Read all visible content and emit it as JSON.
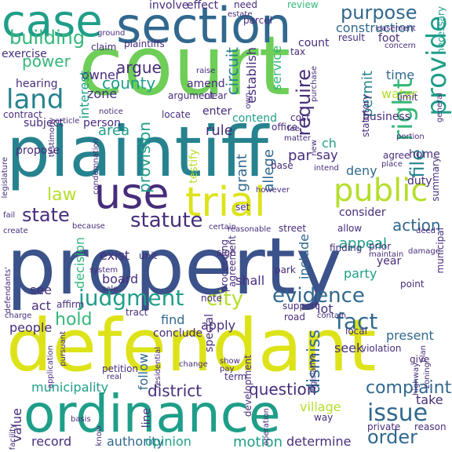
{
  "palette": {
    "dark-purple": "#472d7b",
    "indigo": "#3b528b",
    "slate-blue": "#31688e",
    "teal-blue": "#26828e",
    "teal": "#1f9e89",
    "green": "#35b779",
    "lime": "#6ece58",
    "yellow-green": "#b5de2b",
    "yellow": "#dde318",
    "deep-purple": "#440154"
  },
  "words": [
    {
      "text": "property",
      "color": "#3b528b"
    },
    {
      "text": "defendant",
      "color": "#dde318"
    },
    {
      "text": "plaintiff",
      "color": "#26828e"
    },
    {
      "text": "court",
      "color": "#6ece58"
    },
    {
      "text": "ordinance",
      "color": "#1f9e89"
    },
    {
      "text": "section",
      "color": "#31688e"
    },
    {
      "text": "case",
      "color": "#1f9e89"
    },
    {
      "text": "use",
      "color": "#472d7b"
    },
    {
      "text": "trial",
      "color": "#dde318"
    },
    {
      "text": "public",
      "color": "#b5de2b"
    },
    {
      "text": "provide",
      "color": "#1f9e89"
    },
    {
      "text": "land",
      "color": "#26828e"
    },
    {
      "text": "evidence",
      "color": "#31688e"
    },
    {
      "text": "judgment",
      "color": "#1f9e89"
    },
    {
      "text": "issue",
      "color": "#31688e"
    },
    {
      "text": "fact",
      "color": "#31688e"
    },
    {
      "text": "statute",
      "color": "#472d7b"
    },
    {
      "text": "state",
      "color": "#472d7b"
    },
    {
      "text": "right",
      "color": "#35b779"
    },
    {
      "text": "city",
      "color": "#b5de2b"
    },
    {
      "text": "purpose",
      "color": "#31688e"
    },
    {
      "text": "building",
      "color": "#35b779"
    },
    {
      "text": "complaint",
      "color": "#31688e"
    },
    {
      "text": "order",
      "color": "#31688e"
    },
    {
      "text": "law",
      "color": "#b5de2b"
    },
    {
      "text": "power",
      "color": "#35b779"
    },
    {
      "text": "hold",
      "color": "#35b779"
    },
    {
      "text": "county",
      "color": "#1f9e89"
    },
    {
      "text": "argue",
      "color": "#472d7b"
    },
    {
      "text": "action",
      "color": "#31688e"
    },
    {
      "text": "file",
      "color": "#26828e"
    },
    {
      "text": "require",
      "color": "#472d7b"
    },
    {
      "text": "provision",
      "color": "#1f9e89"
    },
    {
      "text": "district",
      "color": "#472d7b"
    },
    {
      "text": "municipality",
      "color": "#1f9e89"
    },
    {
      "text": "question",
      "color": "#472d7b"
    },
    {
      "text": "village",
      "color": "#b5de2b"
    },
    {
      "text": "motion",
      "color": "#1f9e89"
    },
    {
      "text": "determine",
      "color": "#472d7b"
    },
    {
      "text": "authority",
      "color": "#31688e"
    },
    {
      "text": "opinion",
      "color": "#1f9e89"
    },
    {
      "text": "record",
      "color": "#472d7b"
    },
    {
      "text": "appeal",
      "color": "#1f9e89"
    },
    {
      "text": "party",
      "color": "#1f9e89"
    },
    {
      "text": "present",
      "color": "#31688e"
    },
    {
      "text": "find",
      "color": "#31688e"
    },
    {
      "text": "apply",
      "color": "#472d7b"
    },
    {
      "text": "seek",
      "color": "#472d7b"
    },
    {
      "text": "dismiss",
      "color": "#31688e"
    },
    {
      "text": "take",
      "color": "#472d7b"
    },
    {
      "text": "construction",
      "color": "#31688e"
    },
    {
      "text": "permit",
      "color": "#26828e"
    },
    {
      "text": "water",
      "color": "#b5de2b"
    },
    {
      "text": "time",
      "color": "#31688e"
    },
    {
      "text": "business",
      "color": "#472d7b"
    },
    {
      "text": "rule",
      "color": "#472d7b"
    },
    {
      "text": "area",
      "color": "#1f9e89"
    },
    {
      "text": "owner",
      "color": "#472d7b"
    },
    {
      "text": "zone",
      "color": "#472d7b"
    },
    {
      "text": "interest",
      "color": "#1f9e89"
    },
    {
      "text": "establish",
      "color": "#472d7b"
    },
    {
      "text": "circuit",
      "color": "#26828e"
    },
    {
      "text": "service",
      "color": "#35b779"
    },
    {
      "text": "contend",
      "color": "#1f9e89"
    },
    {
      "text": "grant",
      "color": "#31688e"
    },
    {
      "text": "allege",
      "color": "#31688e"
    },
    {
      "text": "par",
      "color": "#472d7b"
    },
    {
      "text": "say",
      "color": "#472d7b"
    },
    {
      "text": "ch",
      "color": "#1f9e89"
    },
    {
      "text": "deny",
      "color": "#31688e"
    },
    {
      "text": "duty",
      "color": "#472d7b"
    },
    {
      "text": "consider",
      "color": "#472d7b"
    },
    {
      "text": "exist",
      "color": "#472d7b"
    },
    {
      "text": "decision",
      "color": "#35b779"
    },
    {
      "text": "board",
      "color": "#472d7b"
    },
    {
      "text": "shall",
      "color": "#472d7b"
    },
    {
      "text": "include",
      "color": "#31688e"
    },
    {
      "text": "year",
      "color": "#472d7b"
    },
    {
      "text": "lot",
      "color": "#472d7b"
    },
    {
      "text": "follow",
      "color": "#31688e"
    },
    {
      "text": "see",
      "color": "#472d7b"
    },
    {
      "text": "act",
      "color": "#472d7b"
    },
    {
      "text": "people",
      "color": "#472d7b"
    },
    {
      "text": "value",
      "color": "#472d7b"
    },
    {
      "text": "person",
      "color": "#472d7b"
    },
    {
      "text": "subject",
      "color": "#472d7b"
    },
    {
      "text": "propose",
      "color": "#472d7b"
    },
    {
      "text": "testify",
      "color": "#b5de2b"
    },
    {
      "text": "exercise",
      "color": "#472d7b"
    },
    {
      "text": "hearing",
      "color": "#472d7b"
    },
    {
      "text": "contract",
      "color": "#472d7b"
    },
    {
      "text": "claim",
      "color": "#472d7b"
    },
    {
      "text": "plaintiffs'",
      "color": "#472d7b"
    },
    {
      "text": "amend",
      "color": "#472d7b"
    },
    {
      "text": "enter",
      "color": "#472d7b"
    },
    {
      "text": "locate",
      "color": "#472d7b"
    },
    {
      "text": "involve",
      "color": "#472d7b"
    },
    {
      "text": "effect",
      "color": "#472d7b"
    },
    {
      "text": "review",
      "color": "#35b779"
    },
    {
      "text": "need",
      "color": "#472d7b"
    },
    {
      "text": "tax",
      "color": "#472d7b"
    },
    {
      "text": "count",
      "color": "#472d7b"
    },
    {
      "text": "result",
      "color": "#472d7b"
    },
    {
      "text": "parcel",
      "color": "#472d7b"
    },
    {
      "text": "foot",
      "color": "#472d7b"
    },
    {
      "text": "concern",
      "color": "#472d7b"
    },
    {
      "text": "necessary",
      "color": "#1f9e89"
    },
    {
      "text": "general",
      "color": "#472d7b"
    },
    {
      "text": "limit",
      "color": "#472d7b"
    },
    {
      "text": "statutory",
      "color": "#472d7b"
    },
    {
      "text": "home",
      "color": "#472d7b"
    },
    {
      "text": "place",
      "color": "#472d7b"
    },
    {
      "text": "agree",
      "color": "#472d7b"
    },
    {
      "text": "portion",
      "color": "#472d7b"
    },
    {
      "text": "summary",
      "color": "#472d7b"
    },
    {
      "text": "base",
      "color": "#472d7b"
    },
    {
      "text": "intend",
      "color": "#472d7b"
    },
    {
      "text": "cost",
      "color": "#472d7b"
    },
    {
      "text": "fee",
      "color": "#472d7b"
    },
    {
      "text": "matter",
      "color": "#472d7b"
    },
    {
      "text": "office",
      "color": "#472d7b"
    },
    {
      "text": "argument",
      "color": "#472d7b"
    },
    {
      "text": "raise",
      "color": "#472d7b"
    },
    {
      "text": "clear",
      "color": "#472d7b"
    },
    {
      "text": "notice",
      "color": "#472d7b"
    },
    {
      "text": "article",
      "color": "#472d7b"
    },
    {
      "text": "ground",
      "color": "#472d7b"
    },
    {
      "text": "estate",
      "color": "#472d7b"
    },
    {
      "text": "easement",
      "color": "#472d7b"
    },
    {
      "text": "set",
      "color": "#472d7b"
    },
    {
      "text": "however",
      "color": "#472d7b"
    },
    {
      "text": "certain",
      "color": "#472d7b"
    },
    {
      "text": "reasonable",
      "color": "#472d7b"
    },
    {
      "text": "street",
      "color": "#472d7b"
    },
    {
      "text": "allow",
      "color": "#472d7b"
    },
    {
      "text": "deed",
      "color": "#472d7b"
    },
    {
      "text": "finding",
      "color": "#472d7b"
    },
    {
      "text": "prior",
      "color": "#472d7b"
    },
    {
      "text": "maintain",
      "color": "#472d7b"
    },
    {
      "text": "damage",
      "color": "#472d7b"
    },
    {
      "text": "unit",
      "color": "#472d7b"
    },
    {
      "text": "system",
      "color": "#472d7b"
    },
    {
      "text": "proceeding",
      "color": "#472d7b"
    },
    {
      "text": "agreement",
      "color": "#472d7b"
    },
    {
      "text": "park",
      "color": "#472d7b"
    },
    {
      "text": "sign",
      "color": "#472d7b"
    },
    {
      "text": "sale",
      "color": "#472d7b"
    },
    {
      "text": "note",
      "color": "#472d7b"
    },
    {
      "text": "tract",
      "color": "#472d7b"
    },
    {
      "text": "support",
      "color": "#472d7b"
    },
    {
      "text": "road",
      "color": "#472d7b"
    },
    {
      "text": "local",
      "color": "#472d7b"
    },
    {
      "text": "point",
      "color": "#472d7b"
    },
    {
      "text": "municipal",
      "color": "#472d7b"
    },
    {
      "text": "conclude",
      "color": "#472d7b"
    },
    {
      "text": "special",
      "color": "#472d7b"
    },
    {
      "text": "legislative",
      "color": "#472d7b"
    },
    {
      "text": "violation",
      "color": "#472d7b"
    },
    {
      "text": "give",
      "color": "#472d7b"
    },
    {
      "text": "plan",
      "color": "#472d7b"
    },
    {
      "text": "highway",
      "color": "#472d7b"
    },
    {
      "text": "private",
      "color": "#472d7b"
    },
    {
      "text": "reason",
      "color": "#472d7b"
    },
    {
      "text": "way",
      "color": "#472d7b"
    },
    {
      "text": "line",
      "color": "#472d7b"
    },
    {
      "text": "term",
      "color": "#472d7b"
    },
    {
      "text": "development",
      "color": "#472d7b"
    },
    {
      "text": "show",
      "color": "#472d7b"
    },
    {
      "text": "pay",
      "color": "#472d7b"
    },
    {
      "text": "change",
      "color": "#472d7b"
    },
    {
      "text": "petition",
      "color": "#472d7b"
    },
    {
      "text": "real",
      "color": "#472d7b"
    },
    {
      "text": "pursuant",
      "color": "#472d7b"
    },
    {
      "text": "application",
      "color": "#472d7b"
    },
    {
      "text": "charge",
      "color": "#472d7b"
    },
    {
      "text": "defendants'",
      "color": "#472d7b"
    },
    {
      "text": "affirm",
      "color": "#472d7b"
    },
    {
      "text": "residential",
      "color": "#472d7b"
    },
    {
      "text": "zoning",
      "color": "#472d7b"
    },
    {
      "text": "operation",
      "color": "#472d7b"
    },
    {
      "text": "basis",
      "color": "#472d7b"
    },
    {
      "text": "facility",
      "color": "#472d7b"
    },
    {
      "text": "know",
      "color": "#472d7b"
    },
    {
      "text": "testimony",
      "color": "#472d7b"
    },
    {
      "text": "legislature",
      "color": "#472d7b"
    },
    {
      "text": "create",
      "color": "#472d7b"
    },
    {
      "text": "fail",
      "color": "#472d7b"
    },
    {
      "text": "condemnation",
      "color": "#472d7b"
    },
    {
      "text": "because",
      "color": "#472d7b"
    },
    {
      "text": "purchase",
      "color": "#472d7b"
    },
    {
      "text": "new",
      "color": "#472d7b"
    },
    {
      "text": "contain",
      "color": "#472d7b"
    },
    {
      "text": "own",
      "color": "#472d7b"
    }
  ]
}
